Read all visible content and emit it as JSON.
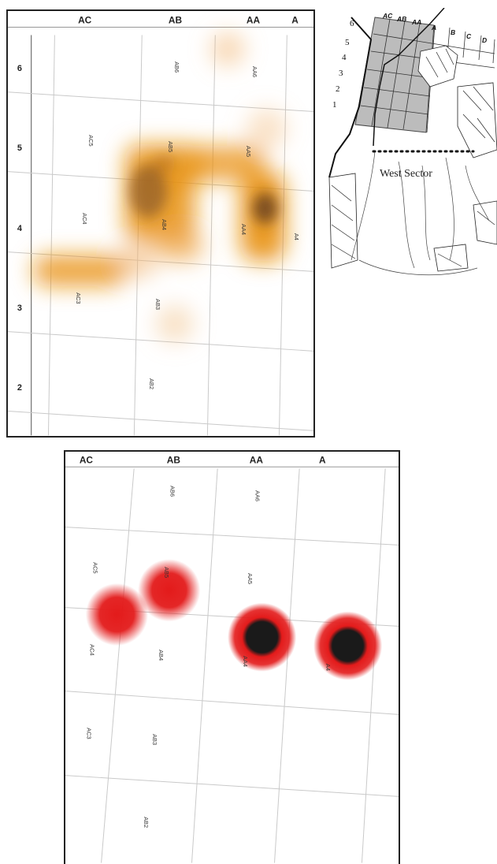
{
  "top_map": {
    "columns": [
      "AC",
      "AB",
      "AA",
      "A"
    ],
    "rows": [
      "6",
      "5",
      "4",
      "3",
      "2"
    ],
    "cells": [
      "AB6",
      "AA6",
      "AC5",
      "AB5",
      "AA5",
      "AC4",
      "AB4",
      "AA4",
      "A4",
      "AC3",
      "AB3",
      "AB2"
    ],
    "heat_color": "#e8900c"
  },
  "bottom_map": {
    "columns": [
      "AC",
      "AB",
      "AA",
      "A"
    ],
    "cells": [
      "AB6",
      "AA6",
      "AC5",
      "AB5",
      "AA5",
      "AC4",
      "AB4",
      "AA4",
      "A4",
      "AC3",
      "AB3",
      "AB2"
    ],
    "heat_color": "#e31b1b",
    "core_color": "#1a1a1a"
  },
  "key_map": {
    "row_numbers": [
      "6",
      "5",
      "4",
      "3",
      "2",
      "1"
    ],
    "column_letters": [
      "AC",
      "AB",
      "AA",
      "A",
      "B",
      "C",
      "D"
    ],
    "sector_label": "West Sector",
    "shaded_color": "#bcbcbc"
  }
}
